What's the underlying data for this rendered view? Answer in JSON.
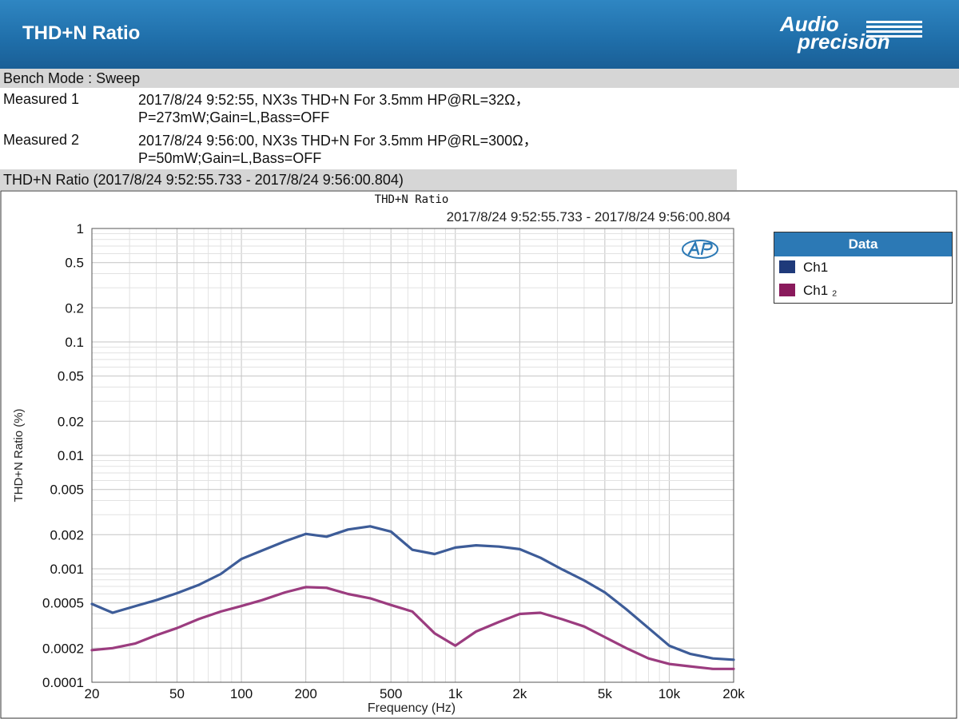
{
  "header": {
    "title": "THD+N Ratio",
    "logo_line1": "Audio",
    "logo_line2": "precision"
  },
  "info": {
    "bench_mode": "Bench Mode : Sweep",
    "measured": [
      {
        "label": "Measured 1",
        "text": "2017/8/24 9:52:55, NX3s THD+N For 3.5mm HP@RL=32Ω，\nP=273mW;Gain=L,Bass=OFF"
      },
      {
        "label": "Measured 2",
        "text": "2017/8/24 9:56:00, NX3s THD+N For 3.5mm HP@RL=300Ω，\nP=50mW;Gain=L,Bass=OFF"
      }
    ],
    "chart_section_title": "THD+N Ratio (2017/8/24 9:52:55.733 - 2017/8/24 9:56:00.804)"
  },
  "legend": {
    "title": "Data",
    "items": [
      {
        "name": "Ch1",
        "color": "#1f3a7a"
      },
      {
        "name": "Ch1 ₂",
        "color": "#8a1a5c"
      }
    ]
  },
  "colors": {
    "series1": "#3d5c98",
    "series2": "#9b3c7f",
    "accent": "#2c79b5"
  },
  "chart_data": {
    "type": "line",
    "title": "THD+N Ratio",
    "subtitle": "2017/8/24 9:52:55.733 - 2017/8/24 9:56:00.804",
    "xlabel": "Frequency (Hz)",
    "ylabel": "THD+N Ratio (%)",
    "x_scale": "log",
    "y_scale": "log",
    "xlim": [
      20,
      20000
    ],
    "ylim": [
      0.0001,
      1
    ],
    "grid": true,
    "legend_position": "right",
    "x_ticks": [
      {
        "value": 20,
        "label": "20"
      },
      {
        "value": 50,
        "label": "50"
      },
      {
        "value": 100,
        "label": "100"
      },
      {
        "value": 200,
        "label": "200"
      },
      {
        "value": 500,
        "label": "500"
      },
      {
        "value": 1000,
        "label": "1k"
      },
      {
        "value": 2000,
        "label": "2k"
      },
      {
        "value": 5000,
        "label": "5k"
      },
      {
        "value": 10000,
        "label": "10k"
      },
      {
        "value": 20000,
        "label": "20k"
      }
    ],
    "y_ticks": [
      {
        "value": 1,
        "label": "1"
      },
      {
        "value": 0.5,
        "label": "0.5"
      },
      {
        "value": 0.2,
        "label": "0.2"
      },
      {
        "value": 0.1,
        "label": "0.1"
      },
      {
        "value": 0.05,
        "label": "0.05"
      },
      {
        "value": 0.02,
        "label": "0.02"
      },
      {
        "value": 0.01,
        "label": "0.01"
      },
      {
        "value": 0.005,
        "label": "0.005"
      },
      {
        "value": 0.002,
        "label": "0.002"
      },
      {
        "value": 0.001,
        "label": "0.001"
      },
      {
        "value": 0.0005,
        "label": "0.0005"
      },
      {
        "value": 0.0002,
        "label": "0.0002"
      },
      {
        "value": 0.0001,
        "label": "0.0001"
      }
    ],
    "series": [
      {
        "name": "Ch1",
        "x": [
          20,
          25,
          32,
          40,
          50,
          63,
          80,
          100,
          125,
          160,
          200,
          250,
          315,
          400,
          500,
          630,
          800,
          1000,
          1250,
          1600,
          2000,
          2500,
          3150,
          4000,
          5000,
          6300,
          8000,
          10000,
          12500,
          16000,
          20000
        ],
        "y": [
          0.00049,
          0.00041,
          0.00047,
          0.00053,
          0.00061,
          0.00072,
          0.0009,
          0.00122,
          0.00145,
          0.00175,
          0.00203,
          0.00192,
          0.00222,
          0.00237,
          0.00213,
          0.00147,
          0.00135,
          0.00154,
          0.00161,
          0.00157,
          0.00149,
          0.00125,
          0.00099,
          0.00079,
          0.00062,
          0.00044,
          0.0003,
          0.00021,
          0.000178,
          0.000162,
          0.000158
        ]
      },
      {
        "name": "Ch1 ₂",
        "x": [
          20,
          25,
          32,
          40,
          50,
          63,
          80,
          100,
          125,
          160,
          200,
          250,
          315,
          400,
          500,
          630,
          800,
          1000,
          1250,
          1600,
          2000,
          2500,
          3150,
          4000,
          5000,
          6300,
          8000,
          10000,
          12500,
          16000,
          20000
        ],
        "y": [
          0.000192,
          0.0002,
          0.00022,
          0.00026,
          0.0003,
          0.00036,
          0.00042,
          0.00047,
          0.00053,
          0.00062,
          0.00069,
          0.00068,
          0.0006,
          0.00055,
          0.00048,
          0.00042,
          0.00027,
          0.00021,
          0.00028,
          0.00034,
          0.0004,
          0.00041,
          0.00036,
          0.00031,
          0.00025,
          0.0002,
          0.000162,
          0.000145,
          0.000138,
          0.000131,
          0.000131
        ]
      }
    ]
  }
}
